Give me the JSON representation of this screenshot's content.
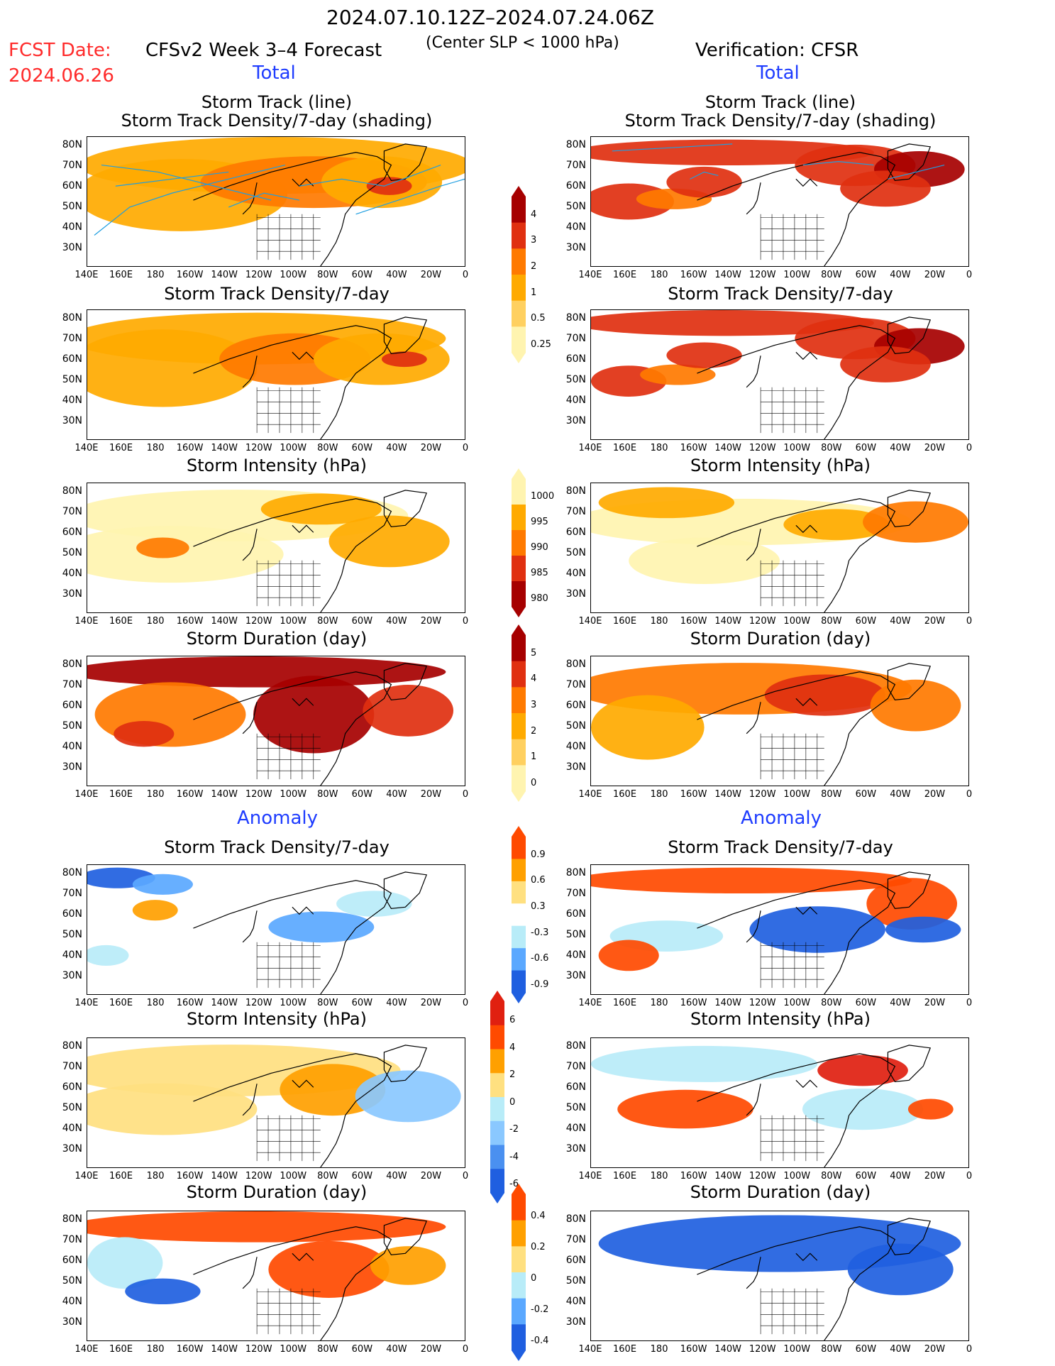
{
  "header": {
    "date_range": "2024.07.10.12Z–2024.07.24.06Z",
    "fcst_label": "FCST Date:",
    "fcst_date": "2024.06.26",
    "model_title": "CFSv2 Week 3–4 Forecast",
    "criteria": "(Center SLP < 1000 hPa)",
    "verification": "Verification: CFSR",
    "total_left": "Total",
    "total_right": "Total",
    "anomaly_left": "Anomaly",
    "anomaly_right": "Anomaly"
  },
  "panels": {
    "p1": {
      "title": "Storm Track (line)",
      "subtitle": "Storm Track Density/7-day (shading)"
    },
    "p2": {
      "title": "Storm Track Density/7-day"
    },
    "p3": {
      "title": "Storm Intensity (hPa)"
    },
    "p4": {
      "title": "Storm Duration (day)"
    },
    "p5": {
      "title": "Storm Track Density/7-day"
    },
    "p6": {
      "title": "Storm Intensity (hPa)"
    },
    "p7": {
      "title": "Storm Duration (day)"
    }
  },
  "axes": {
    "lat_labels": [
      "80N",
      "70N",
      "60N",
      "50N",
      "40N",
      "30N"
    ],
    "lon_labels": [
      "140E",
      "160E",
      "180",
      "160W",
      "140W",
      "120W",
      "100W",
      "80W",
      "60W",
      "40W",
      "20W",
      "0"
    ]
  },
  "colorbars": {
    "density": {
      "labels": [
        "4",
        "3",
        "2",
        "1",
        "0.5",
        "0.25"
      ],
      "colors": [
        "#a60000",
        "#e03010",
        "#ff7a00",
        "#ffaa00",
        "#ffd060",
        "#fff4b0"
      ]
    },
    "intensity": {
      "labels": [
        "1000",
        "995",
        "990",
        "985",
        "980"
      ],
      "colors": [
        "#fff4b0",
        "#ffaa00",
        "#ff7a00",
        "#e03010",
        "#a60000"
      ]
    },
    "duration": {
      "labels": [
        "5",
        "4",
        "3",
        "2",
        "1",
        "0"
      ],
      "colors": [
        "#a60000",
        "#e03010",
        "#ff7a00",
        "#ffaa00",
        "#ffd060",
        "#fff4b0"
      ]
    },
    "density_anom": {
      "labels": [
        "0.9",
        "0.6",
        "0.3",
        "-0.3",
        "-0.6",
        "-0.9"
      ],
      "colors": [
        "#ff4a00",
        "#ffa000",
        "#ffe080",
        "#ffffff",
        "#b8ecf8",
        "#5aa8ff",
        "#1f5fe0"
      ]
    },
    "intensity_anom": {
      "labels": [
        "6",
        "4",
        "2",
        "0",
        "-2",
        "-4",
        "-6"
      ],
      "colors": [
        "#e02010",
        "#ff4a00",
        "#ffa000",
        "#ffe080",
        "#b8ecf8",
        "#8ac8ff",
        "#4a90f0",
        "#1f5fe0"
      ]
    },
    "duration_anom": {
      "labels": [
        "0.4",
        "0.2",
        "0",
        "-0.2",
        "-0.4"
      ],
      "colors": [
        "#ff4a00",
        "#ffa000",
        "#ffe080",
        "#b8ecf8",
        "#5aa8ff",
        "#1f5fe0"
      ]
    }
  }
}
